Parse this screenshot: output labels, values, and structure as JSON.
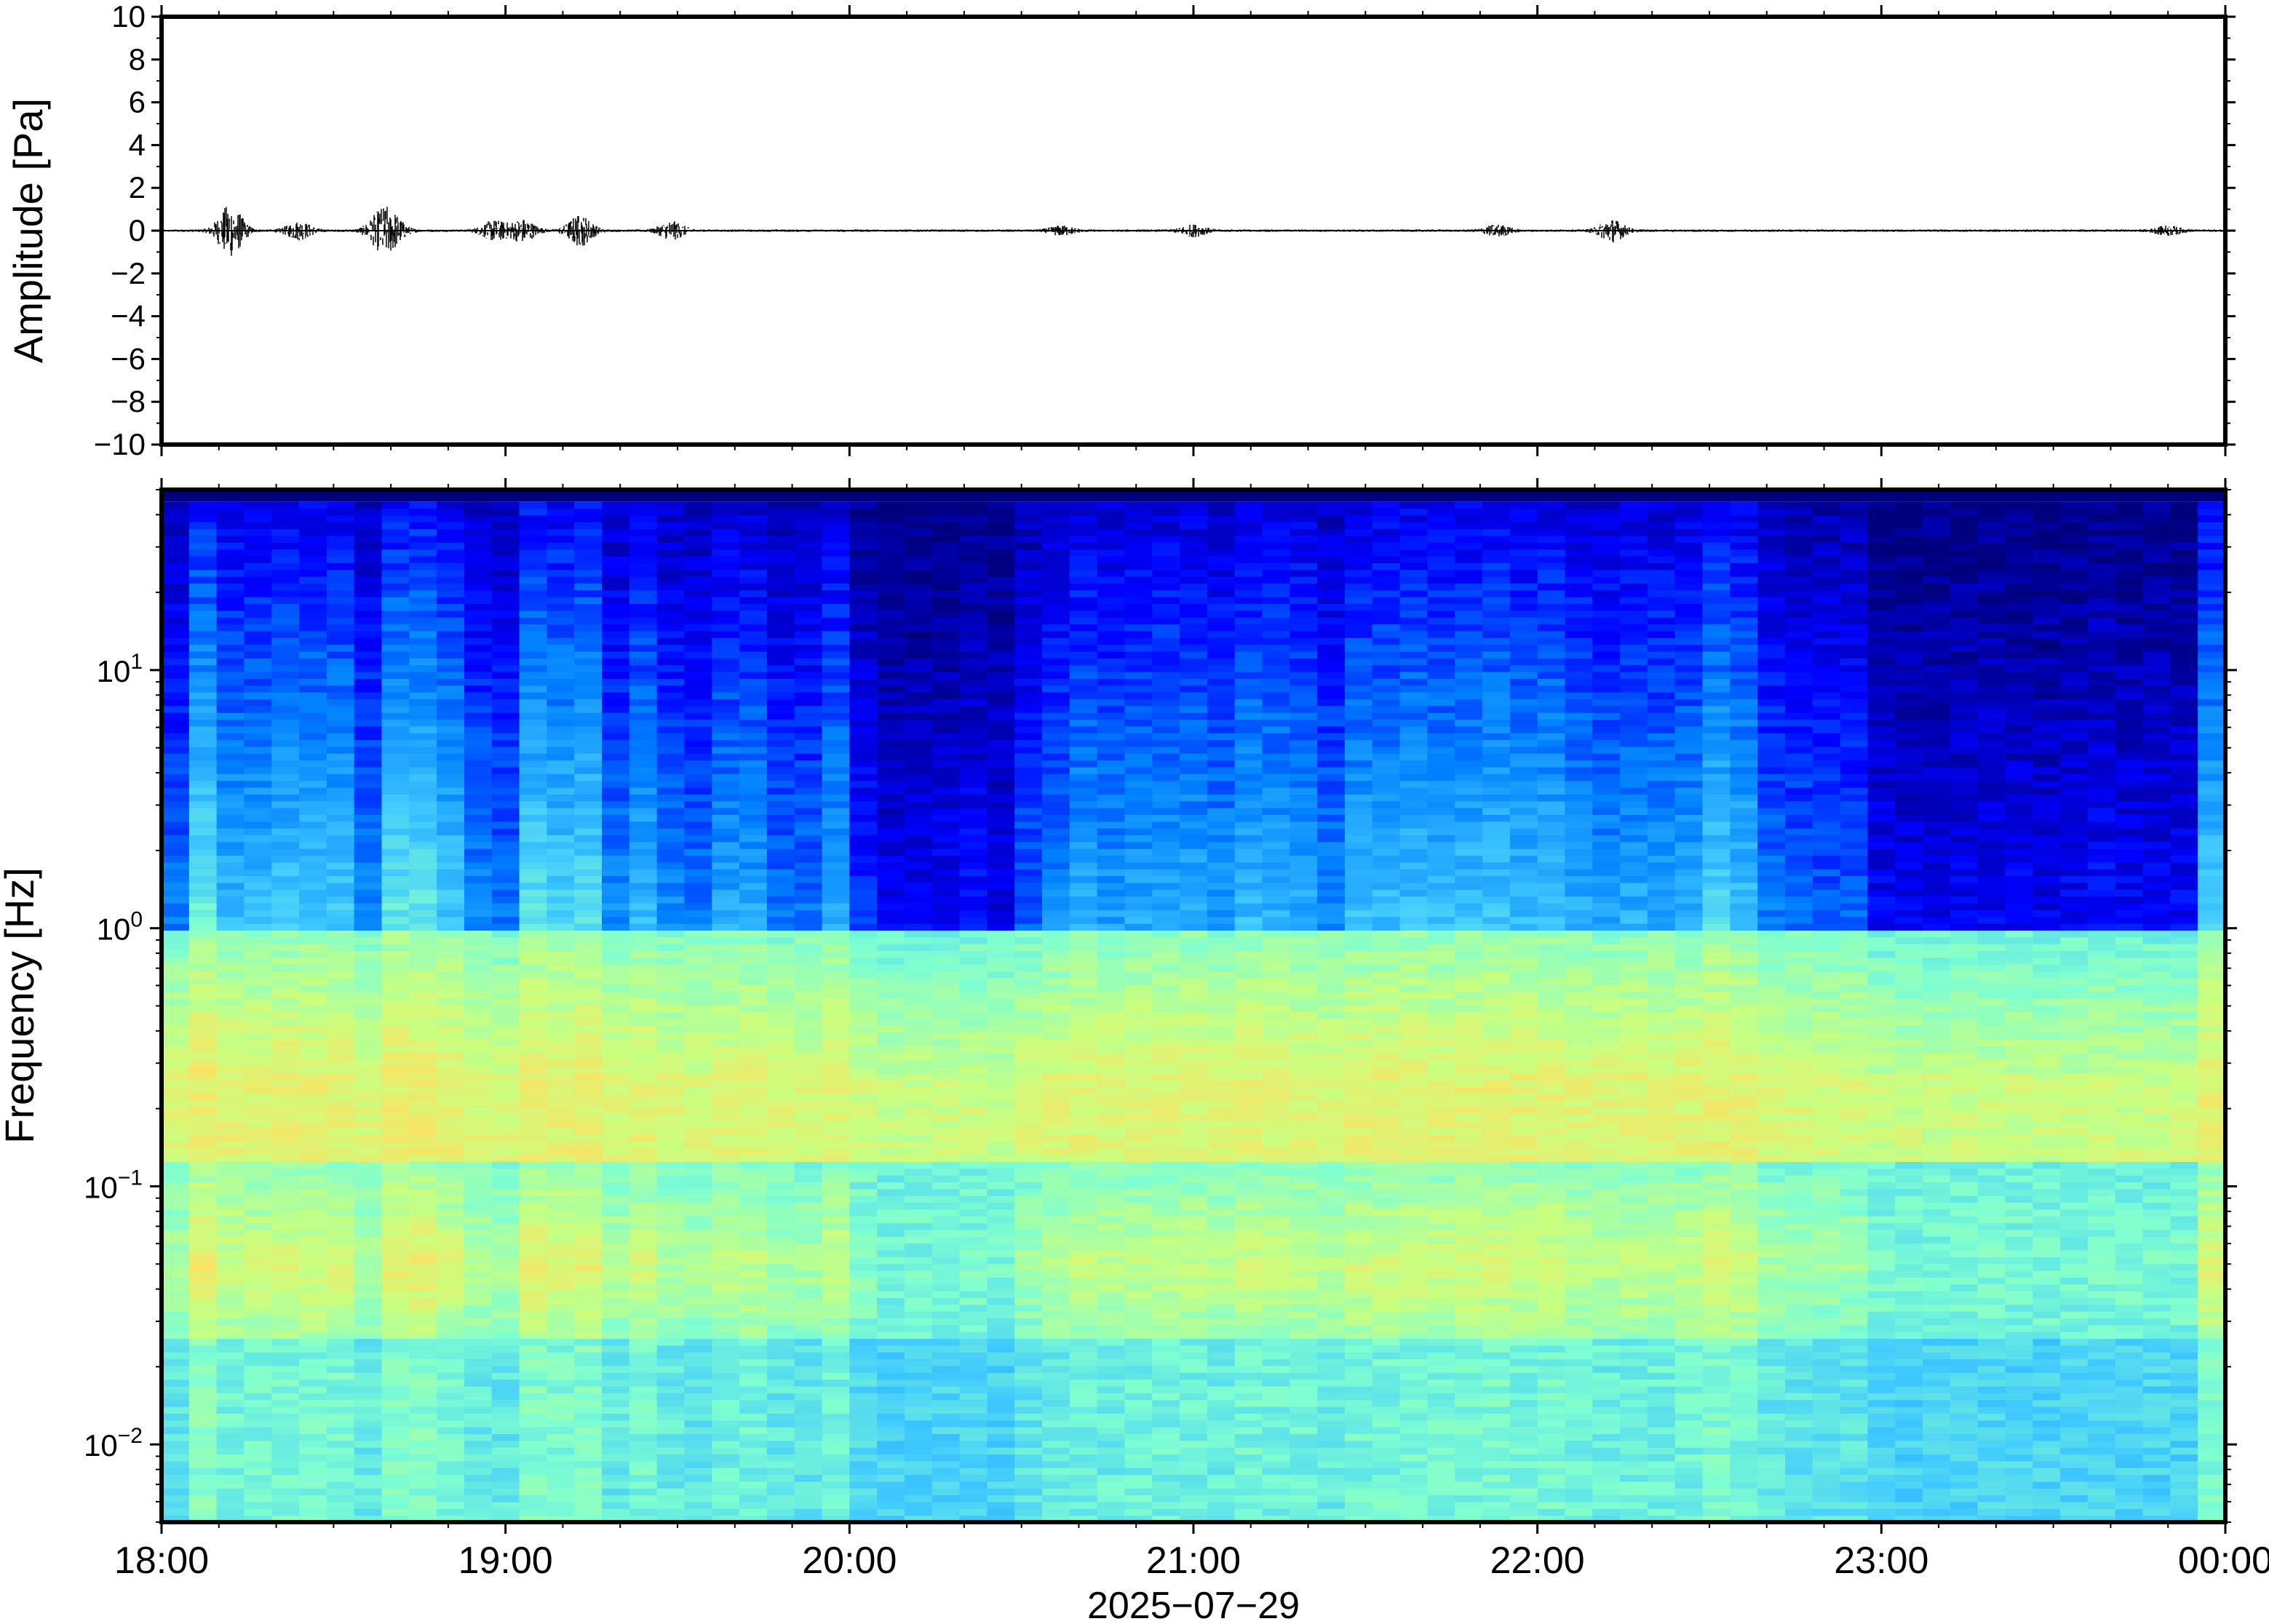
{
  "chart_data": [
    {
      "type": "line",
      "panel": "waveform",
      "ylabel": "Amplitude [Pa]",
      "ylim": [
        -10,
        10
      ],
      "y_ticks": [
        10,
        8,
        6,
        4,
        2,
        0,
        -2,
        -4,
        -6,
        -8,
        -10
      ],
      "y_tick_labels": [
        "10",
        "8",
        "6",
        "4",
        "2",
        "0",
        "−2",
        "−4",
        "−6",
        "−8",
        "−10"
      ],
      "x_range": [
        "2025-07-29 18:00",
        "2025-07-30 00:00"
      ],
      "line_color": "#000000",
      "baseline": 0,
      "bursts": [
        {
          "time": "18:12",
          "amplitude": 1.2
        },
        {
          "time": "18:24",
          "amplitude": 0.4
        },
        {
          "time": "18:38",
          "amplitude": 0.3
        },
        {
          "time": "18:38",
          "amplitude": 0.3
        },
        {
          "time": "18:40",
          "amplitude": 0.7
        },
        {
          "time": "18:58",
          "amplitude": 0.45
        },
        {
          "time": "19:03",
          "amplitude": 0.5
        },
        {
          "time": "19:13",
          "amplitude": 0.7
        },
        {
          "time": "19:29",
          "amplitude": 0.4
        },
        {
          "time": "20:37",
          "amplitude": 0.2
        },
        {
          "time": "21:00",
          "amplitude": 0.25
        },
        {
          "time": "21:53",
          "amplitude": 0.25
        },
        {
          "time": "22:13",
          "amplitude": 0.5
        },
        {
          "time": "23:50",
          "amplitude": 0.2
        }
      ]
    },
    {
      "type": "heatmap",
      "panel": "spectrogram",
      "ylabel": "Frequency [Hz]",
      "y_scale": "log",
      "ylim": [
        0.005,
        50
      ],
      "y_ticks": [
        0.01,
        0.1,
        1,
        10
      ],
      "y_tick_labels": [
        {
          "base": "10",
          "exp": "−2"
        },
        {
          "base": "10",
          "exp": "−1"
        },
        {
          "base": "10",
          "exp": "0"
        },
        {
          "base": "10",
          "exp": "1"
        }
      ],
      "x_range": [
        "2025-07-29 18:00",
        "2025-07-30 00:00"
      ],
      "colormap": [
        "#00007f",
        "#0000ff",
        "#0080ff",
        "#3fc8ff",
        "#80ffd0",
        "#c8ff80",
        "#ffe060",
        "#ff9040",
        "#e03020"
      ],
      "time_bin_minutes": 4.8,
      "column_activity": [
        0.35,
        0.75,
        0.55,
        0.55,
        0.6,
        0.6,
        0.6,
        0.4,
        0.72,
        0.72,
        0.6,
        0.4,
        0.35,
        0.7,
        0.65,
        0.68,
        0.4,
        0.55,
        0.4,
        0.35,
        0.48,
        0.48,
        0.35,
        0.35,
        0.5,
        0.2,
        0.1,
        0.1,
        0.12,
        0.15,
        0.1,
        0.3,
        0.4,
        0.5,
        0.45,
        0.48,
        0.5,
        0.5,
        0.45,
        0.55,
        0.52,
        0.5,
        0.4,
        0.55,
        0.55,
        0.58,
        0.55,
        0.58,
        0.6,
        0.56,
        0.58,
        0.5,
        0.45,
        0.5,
        0.48,
        0.5,
        0.66,
        0.58,
        0.35,
        0.32,
        0.3,
        0.3,
        0.12,
        0.1,
        0.1,
        0.12,
        0.12,
        0.12,
        0.1,
        0.12,
        0.15,
        0.12,
        0.12,
        0.12,
        0.62
      ],
      "low_freq_band": {
        "center_hz": 0.18,
        "note": "persistent microseism band"
      }
    }
  ],
  "x_axis": {
    "tick_labels": [
      "18:00",
      "19:00",
      "20:00",
      "21:00",
      "22:00",
      "23:00",
      "00:00"
    ],
    "date_label": "2025−07−29"
  }
}
